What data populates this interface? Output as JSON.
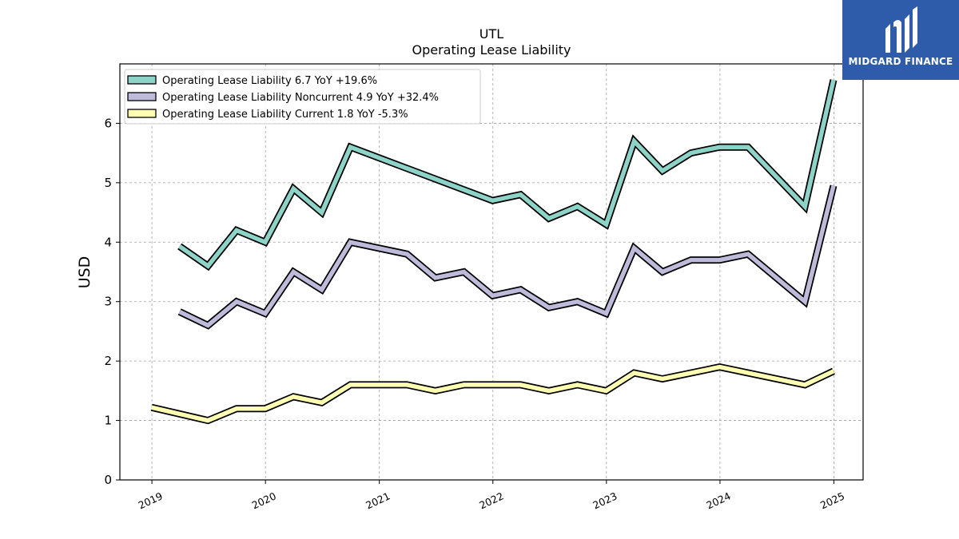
{
  "chart_data": {
    "type": "line",
    "title": "UTL",
    "subtitle": "Operating Lease Liability",
    "xlabel": "",
    "ylabel": "USD",
    "xlim": [
      "2018-09-20",
      "2025-04-05"
    ],
    "ylim": [
      0,
      7.0
    ],
    "yticks": [
      0,
      1,
      2,
      3,
      4,
      5,
      6
    ],
    "xticks": [
      "2019",
      "2020",
      "2021",
      "2022",
      "2023",
      "2024",
      "2025"
    ],
    "grid": true,
    "legend_position": "top-left",
    "series": [
      {
        "name": "Operating Lease Liability  6.7 YoY +19.6%",
        "color": "#8dd3c7",
        "points": [
          [
            "2019-03-31",
            3.93
          ],
          [
            "2019-06-30",
            3.6
          ],
          [
            "2019-09-30",
            4.2
          ],
          [
            "2019-12-31",
            4.0
          ],
          [
            "2020-03-31",
            4.9
          ],
          [
            "2020-06-30",
            4.5
          ],
          [
            "2020-09-30",
            5.6
          ],
          [
            "2021-12-31",
            4.7
          ],
          [
            "2022-03-31",
            4.8
          ],
          [
            "2022-06-30",
            4.4
          ],
          [
            "2022-09-30",
            4.6
          ],
          [
            "2022-12-31",
            4.3
          ],
          [
            "2023-03-31",
            5.7
          ],
          [
            "2023-06-30",
            5.2
          ],
          [
            "2023-09-30",
            5.5
          ],
          [
            "2023-12-31",
            5.6
          ],
          [
            "2024-03-31",
            5.6
          ],
          [
            "2024-09-30",
            4.6
          ],
          [
            "2024-12-31",
            6.73
          ]
        ]
      },
      {
        "name": "Operating Lease Liability Noncurrent  4.9 YoY +32.4%",
        "color": "#bebada",
        "points": [
          [
            "2019-03-31",
            2.83
          ],
          [
            "2019-06-30",
            2.6
          ],
          [
            "2019-09-30",
            3.0
          ],
          [
            "2019-12-31",
            2.8
          ],
          [
            "2020-03-31",
            3.5
          ],
          [
            "2020-06-30",
            3.2
          ],
          [
            "2020-09-30",
            4.0
          ],
          [
            "2021-03-31",
            3.8
          ],
          [
            "2021-06-30",
            3.4
          ],
          [
            "2021-09-30",
            3.5
          ],
          [
            "2021-12-31",
            3.1
          ],
          [
            "2022-03-31",
            3.2
          ],
          [
            "2022-06-30",
            2.9
          ],
          [
            "2022-09-30",
            3.0
          ],
          [
            "2022-12-31",
            2.8
          ],
          [
            "2023-03-31",
            3.9
          ],
          [
            "2023-06-30",
            3.5
          ],
          [
            "2023-09-30",
            3.7
          ],
          [
            "2023-12-31",
            3.7
          ],
          [
            "2024-03-31",
            3.8
          ],
          [
            "2024-09-30",
            3.0
          ],
          [
            "2024-12-31",
            4.95
          ]
        ]
      },
      {
        "name": "Operating Lease Liability Current  1.8 YoY -5.3%",
        "color": "#ffffb3",
        "points": [
          [
            "2018-12-31",
            1.22
          ],
          [
            "2019-06-30",
            1.0
          ],
          [
            "2019-09-30",
            1.2
          ],
          [
            "2019-12-31",
            1.2
          ],
          [
            "2020-03-31",
            1.4
          ],
          [
            "2020-06-30",
            1.3
          ],
          [
            "2020-09-30",
            1.6
          ],
          [
            "2021-03-31",
            1.6
          ],
          [
            "2021-06-30",
            1.5
          ],
          [
            "2021-09-30",
            1.6
          ],
          [
            "2022-03-31",
            1.6
          ],
          [
            "2022-06-30",
            1.5
          ],
          [
            "2022-09-30",
            1.6
          ],
          [
            "2022-12-31",
            1.5
          ],
          [
            "2023-03-31",
            1.8
          ],
          [
            "2023-06-30",
            1.7
          ],
          [
            "2023-12-31",
            1.9
          ],
          [
            "2024-09-30",
            1.6
          ],
          [
            "2024-12-31",
            1.83
          ]
        ]
      }
    ]
  },
  "logo": {
    "text": "MIDGARD FINANCE",
    "bg_color": "#2f5caa"
  }
}
